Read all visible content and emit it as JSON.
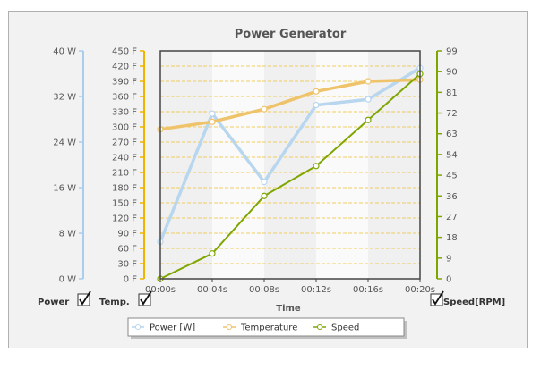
{
  "chart_data": {
    "type": "line",
    "title": "Power Generator",
    "xlabel": "Time",
    "categories": [
      "00:00s",
      "00:04s",
      "00:08s",
      "00:12s",
      "00:16s",
      "00:20s"
    ],
    "axes": [
      {
        "id": "power",
        "side": "left",
        "unit": "W",
        "range": [
          0,
          40
        ],
        "ticks": [
          0,
          8,
          16,
          24,
          32,
          40
        ],
        "color": "#a9cdec"
      },
      {
        "id": "temp",
        "side": "left",
        "unit": "F",
        "range": [
          0,
          450
        ],
        "ticks": [
          0,
          30,
          60,
          90,
          120,
          150,
          180,
          210,
          240,
          270,
          300,
          330,
          360,
          390,
          420,
          450
        ],
        "color": "#f0b400"
      },
      {
        "id": "speed",
        "side": "right",
        "unit": "",
        "range": [
          0,
          99
        ],
        "ticks": [
          0,
          9,
          18,
          27,
          36,
          45,
          54,
          63,
          72,
          81,
          90,
          99
        ],
        "color": "#7fa600"
      }
    ],
    "series": [
      {
        "name": "Power [W]",
        "axis": "power",
        "values": [
          6.5,
          29,
          17,
          30.5,
          31.5,
          37
        ],
        "color": "#b8d6ee"
      },
      {
        "name": "Temperature",
        "axis": "temp",
        "values": [
          295,
          310,
          335,
          370,
          390,
          393
        ],
        "color": "#efc36a"
      },
      {
        "name": "Speed",
        "axis": "speed",
        "values": [
          0,
          11,
          36,
          49,
          69,
          89
        ],
        "color": "#7fa600"
      }
    ],
    "grid": true,
    "legend": "bottom-center"
  },
  "toggles": {
    "power": {
      "label": "Power",
      "checked": true
    },
    "temp": {
      "label": "Temp.",
      "checked": true
    },
    "speed": {
      "label": "Speed[RPM]",
      "checked": true
    }
  },
  "colors": {
    "plot_background": "#fafafa",
    "plot_band": "#f0f0f0",
    "grid": "#f0c030",
    "plot_border": "#444444"
  }
}
